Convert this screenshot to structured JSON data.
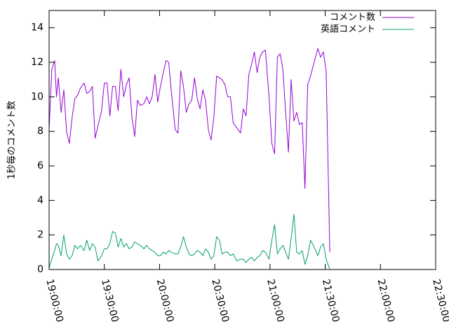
{
  "chart_data": {
    "type": "line",
    "ylabel": "1秒毎のコメント数",
    "xlabel": "",
    "ylim": [
      0,
      15
    ],
    "xlim": [
      "19:00:00",
      "22:30:00"
    ],
    "yticks": [
      "0",
      "2",
      "4",
      "6",
      "8",
      "10",
      "12",
      "14"
    ],
    "xticks": [
      "19:00:00",
      "19:30:00",
      "20:00:00",
      "20:30:00",
      "21:00:00",
      "21:30:00",
      "22:00:00",
      "22:30:00"
    ],
    "grid": false,
    "legend_position": "top-right",
    "series": [
      {
        "name": "コメント数",
        "color": "#9400d3",
        "points": [
          [
            "19:00:00",
            8.1
          ],
          [
            "19:01:30",
            11.6
          ],
          [
            "19:03:00",
            12.1
          ],
          [
            "19:04:00",
            10.0
          ],
          [
            "19:05:00",
            11.1
          ],
          [
            "19:06:30",
            9.1
          ],
          [
            "19:08:00",
            10.4
          ],
          [
            "19:09:30",
            8.0
          ],
          [
            "19:11:00",
            7.3
          ],
          [
            "19:12:30",
            8.8
          ],
          [
            "19:14:00",
            9.9
          ],
          [
            "19:15:30",
            10.1
          ],
          [
            "19:17:00",
            10.5
          ],
          [
            "19:19:00",
            10.8
          ],
          [
            "19:20:30",
            10.2
          ],
          [
            "19:22:00",
            10.3
          ],
          [
            "19:23:30",
            10.6
          ],
          [
            "19:25:00",
            7.6
          ],
          [
            "19:26:30",
            8.3
          ],
          [
            "19:28:30",
            9.2
          ],
          [
            "19:30:00",
            10.8
          ],
          [
            "19:31:30",
            10.8
          ],
          [
            "19:33:00",
            8.9
          ],
          [
            "19:34:30",
            10.6
          ],
          [
            "19:36:00",
            10.6
          ],
          [
            "19:37:30",
            9.2
          ],
          [
            "19:39:00",
            11.6
          ],
          [
            "19:40:30",
            10.0
          ],
          [
            "19:42:00",
            10.7
          ],
          [
            "19:43:30",
            11.1
          ],
          [
            "19:45:00",
            8.8
          ],
          [
            "19:46:30",
            7.7
          ],
          [
            "19:48:00",
            9.8
          ],
          [
            "19:49:30",
            9.5
          ],
          [
            "19:51:30",
            9.6
          ],
          [
            "19:53:00",
            10.0
          ],
          [
            "19:54:30",
            9.6
          ],
          [
            "19:56:00",
            10.0
          ],
          [
            "19:57:30",
            11.3
          ],
          [
            "19:59:00",
            9.7
          ],
          [
            "20:00:30",
            10.6
          ],
          [
            "20:02:00",
            11.4
          ],
          [
            "20:03:30",
            12.1
          ],
          [
            "20:05:00",
            12.0
          ],
          [
            "20:06:30",
            10.2
          ],
          [
            "20:08:30",
            8.1
          ],
          [
            "20:10:00",
            7.9
          ],
          [
            "20:11:30",
            11.5
          ],
          [
            "20:13:00",
            10.6
          ],
          [
            "20:14:30",
            9.1
          ],
          [
            "20:16:00",
            9.6
          ],
          [
            "20:17:30",
            9.8
          ],
          [
            "20:19:00",
            11.1
          ],
          [
            "20:20:30",
            9.9
          ],
          [
            "20:22:00",
            9.3
          ],
          [
            "20:23:30",
            10.4
          ],
          [
            "20:25:00",
            9.8
          ],
          [
            "20:26:30",
            8.1
          ],
          [
            "20:28:00",
            7.5
          ],
          [
            "20:29:30",
            8.8
          ],
          [
            "20:31:00",
            11.2
          ],
          [
            "20:32:30",
            11.1
          ],
          [
            "20:34:00",
            11.0
          ],
          [
            "20:35:30",
            10.7
          ],
          [
            "20:37:00",
            10.0
          ],
          [
            "20:38:30",
            10.0
          ],
          [
            "20:40:00",
            8.5
          ],
          [
            "20:42:00",
            8.2
          ],
          [
            "20:44:00",
            7.9
          ],
          [
            "20:45:30",
            9.3
          ],
          [
            "20:47:00",
            8.9
          ],
          [
            "20:48:30",
            11.3
          ],
          [
            "20:50:00",
            11.9
          ],
          [
            "20:51:30",
            12.6
          ],
          [
            "20:53:00",
            11.4
          ],
          [
            "20:54:30",
            12.3
          ],
          [
            "20:56:00",
            12.6
          ],
          [
            "20:57:30",
            12.7
          ],
          [
            "20:59:30",
            10.0
          ],
          [
            "21:01:00",
            7.3
          ],
          [
            "21:02:30",
            6.7
          ],
          [
            "21:04:00",
            12.3
          ],
          [
            "21:05:30",
            12.5
          ],
          [
            "21:07:00",
            11.6
          ],
          [
            "21:08:30",
            9.1
          ],
          [
            "21:10:00",
            6.8
          ],
          [
            "21:11:30",
            11.0
          ],
          [
            "21:13:00",
            8.6
          ],
          [
            "21:14:30",
            9.1
          ],
          [
            "21:16:00",
            8.4
          ],
          [
            "21:17:30",
            8.5
          ],
          [
            "21:19:00",
            4.7
          ],
          [
            "21:20:30",
            10.7
          ],
          [
            "21:22:00",
            11.2
          ],
          [
            "21:24:00",
            12.0
          ],
          [
            "21:26:00",
            12.8
          ],
          [
            "21:27:30",
            12.3
          ],
          [
            "21:29:00",
            12.6
          ],
          [
            "21:30:30",
            11.5
          ],
          [
            "21:32:30",
            1.0
          ]
        ]
      },
      {
        "name": "英語コメント",
        "color": "#009e73",
        "points": [
          [
            "19:00:00",
            0.1
          ],
          [
            "19:01:30",
            0.6
          ],
          [
            "19:03:00",
            1.1
          ],
          [
            "19:04:00",
            1.5
          ],
          [
            "19:05:00",
            1.4
          ],
          [
            "19:06:30",
            0.8
          ],
          [
            "19:08:00",
            2.0
          ],
          [
            "19:09:30",
            0.9
          ],
          [
            "19:11:00",
            0.6
          ],
          [
            "19:12:30",
            0.8
          ],
          [
            "19:14:00",
            1.4
          ],
          [
            "19:15:30",
            1.2
          ],
          [
            "19:17:00",
            1.4
          ],
          [
            "19:19:00",
            1.1
          ],
          [
            "19:20:30",
            1.7
          ],
          [
            "19:22:00",
            1.1
          ],
          [
            "19:23:30",
            1.5
          ],
          [
            "19:25:00",
            1.3
          ],
          [
            "19:26:30",
            0.5
          ],
          [
            "19:28:30",
            0.8
          ],
          [
            "19:30:00",
            1.2
          ],
          [
            "19:31:30",
            1.2
          ],
          [
            "19:33:00",
            1.5
          ],
          [
            "19:34:30",
            2.2
          ],
          [
            "19:36:00",
            2.1
          ],
          [
            "19:37:30",
            1.3
          ],
          [
            "19:39:00",
            1.8
          ],
          [
            "19:40:30",
            1.3
          ],
          [
            "19:42:00",
            1.5
          ],
          [
            "19:43:30",
            1.2
          ],
          [
            "19:45:00",
            1.3
          ],
          [
            "19:46:30",
            1.6
          ],
          [
            "19:48:00",
            1.5
          ],
          [
            "19:49:30",
            1.4
          ],
          [
            "19:51:30",
            1.2
          ],
          [
            "19:53:00",
            1.4
          ],
          [
            "19:54:30",
            1.2
          ],
          [
            "19:56:00",
            1.1
          ],
          [
            "19:57:30",
            1.0
          ],
          [
            "19:59:00",
            0.8
          ],
          [
            "20:00:30",
            0.8
          ],
          [
            "20:02:00",
            1.0
          ],
          [
            "20:03:30",
            0.9
          ],
          [
            "20:05:00",
            1.1
          ],
          [
            "20:06:30",
            1.0
          ],
          [
            "20:08:30",
            0.9
          ],
          [
            "20:10:00",
            0.9
          ],
          [
            "20:11:30",
            1.3
          ],
          [
            "20:13:00",
            1.9
          ],
          [
            "20:14:30",
            1.3
          ],
          [
            "20:16:00",
            0.9
          ],
          [
            "20:17:30",
            0.8
          ],
          [
            "20:19:00",
            0.9
          ],
          [
            "20:20:30",
            1.1
          ],
          [
            "20:22:00",
            1.0
          ],
          [
            "20:23:30",
            0.8
          ],
          [
            "20:25:00",
            1.2
          ],
          [
            "20:26:30",
            1.0
          ],
          [
            "20:28:00",
            0.6
          ],
          [
            "20:29:30",
            0.8
          ],
          [
            "20:31:00",
            1.9
          ],
          [
            "20:32:30",
            1.7
          ],
          [
            "20:34:00",
            0.9
          ],
          [
            "20:35:30",
            1.0
          ],
          [
            "20:37:00",
            1.0
          ],
          [
            "20:38:30",
            0.8
          ],
          [
            "20:40:00",
            0.9
          ],
          [
            "20:42:00",
            0.5
          ],
          [
            "20:44:00",
            0.6
          ],
          [
            "20:45:30",
            0.6
          ],
          [
            "20:47:00",
            0.4
          ],
          [
            "20:48:30",
            0.6
          ],
          [
            "20:50:00",
            0.7
          ],
          [
            "20:51:30",
            0.5
          ],
          [
            "20:53:00",
            0.7
          ],
          [
            "20:54:30",
            0.8
          ],
          [
            "20:56:00",
            1.1
          ],
          [
            "20:57:30",
            1.0
          ],
          [
            "20:59:30",
            0.6
          ],
          [
            "21:01:00",
            1.7
          ],
          [
            "21:02:30",
            2.6
          ],
          [
            "21:04:00",
            0.9
          ],
          [
            "21:05:30",
            1.2
          ],
          [
            "21:07:00",
            1.4
          ],
          [
            "21:08:30",
            1.0
          ],
          [
            "21:10:00",
            0.6
          ],
          [
            "21:11:30",
            1.8
          ],
          [
            "21:13:00",
            3.2
          ],
          [
            "21:14:30",
            1.0
          ],
          [
            "21:16:00",
            0.9
          ],
          [
            "21:17:30",
            1.1
          ],
          [
            "21:19:00",
            0.3
          ],
          [
            "21:20:30",
            0.8
          ],
          [
            "21:22:00",
            1.7
          ],
          [
            "21:24:00",
            1.3
          ],
          [
            "21:26:00",
            0.8
          ],
          [
            "21:27:30",
            1.3
          ],
          [
            "21:29:00",
            1.5
          ],
          [
            "21:30:30",
            0.6
          ],
          [
            "21:32:30",
            0.0
          ]
        ]
      }
    ]
  }
}
